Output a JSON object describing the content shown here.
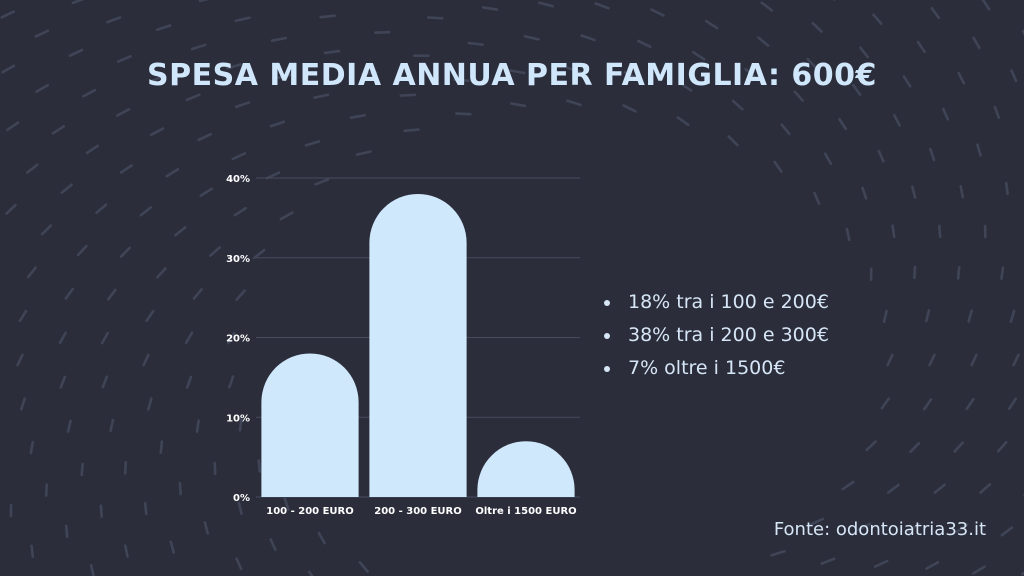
{
  "title": "SPESA MEDIA ANNUA PER FAMIGLIA: 600€",
  "bullets": [
    "18% tra i 100 e 200€",
    "38% tra i 200 e 300€",
    "7% oltre i 1500€"
  ],
  "source": "Fonte: odontoiatria33.it",
  "colors": {
    "background": "#2b2d3b",
    "bar": "#d0e8fb",
    "text": "#d6e6f6",
    "title": "#cfe6fb"
  },
  "chart_data": {
    "type": "bar",
    "categories": [
      "100 - 200 EURO",
      "200 - 300 EURO",
      "Oltre i 1500 EURO"
    ],
    "values": [
      18,
      38,
      7
    ],
    "unit": "%",
    "ylim": [
      0,
      40
    ],
    "yticks": [
      "0%",
      "10%",
      "20%",
      "30%",
      "40%"
    ],
    "grid": true,
    "legend": "none",
    "xlabel": "",
    "ylabel": ""
  }
}
